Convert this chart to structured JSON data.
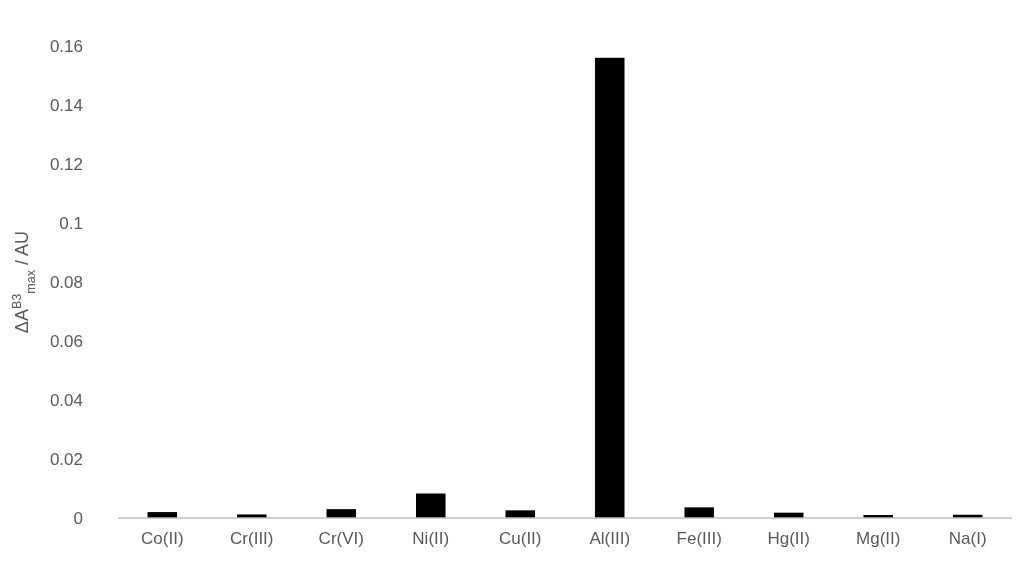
{
  "chart_data": {
    "type": "bar",
    "ylabel": "ΔA$^{B3}$$_{max}$ / AU",
    "categories": [
      "Co(II)",
      "Cr(III)",
      "Cr(VI)",
      "Ni(II)",
      "Cu(II)",
      "Al(III)",
      "Fe(III)",
      "Hg(II)",
      "Mg(II)",
      "Na(I)"
    ],
    "values": [
      0.002,
      0.0012,
      0.003,
      0.0083,
      0.0026,
      0.156,
      0.0036,
      0.0018,
      0.001,
      0.0011
    ],
    "color": "#000000",
    "ylim": [
      0,
      0.16
    ],
    "yticks": [
      0,
      0.02,
      0.04,
      0.06,
      0.08,
      0.1,
      0.12,
      0.14,
      0.16
    ],
    "grid": false
  }
}
